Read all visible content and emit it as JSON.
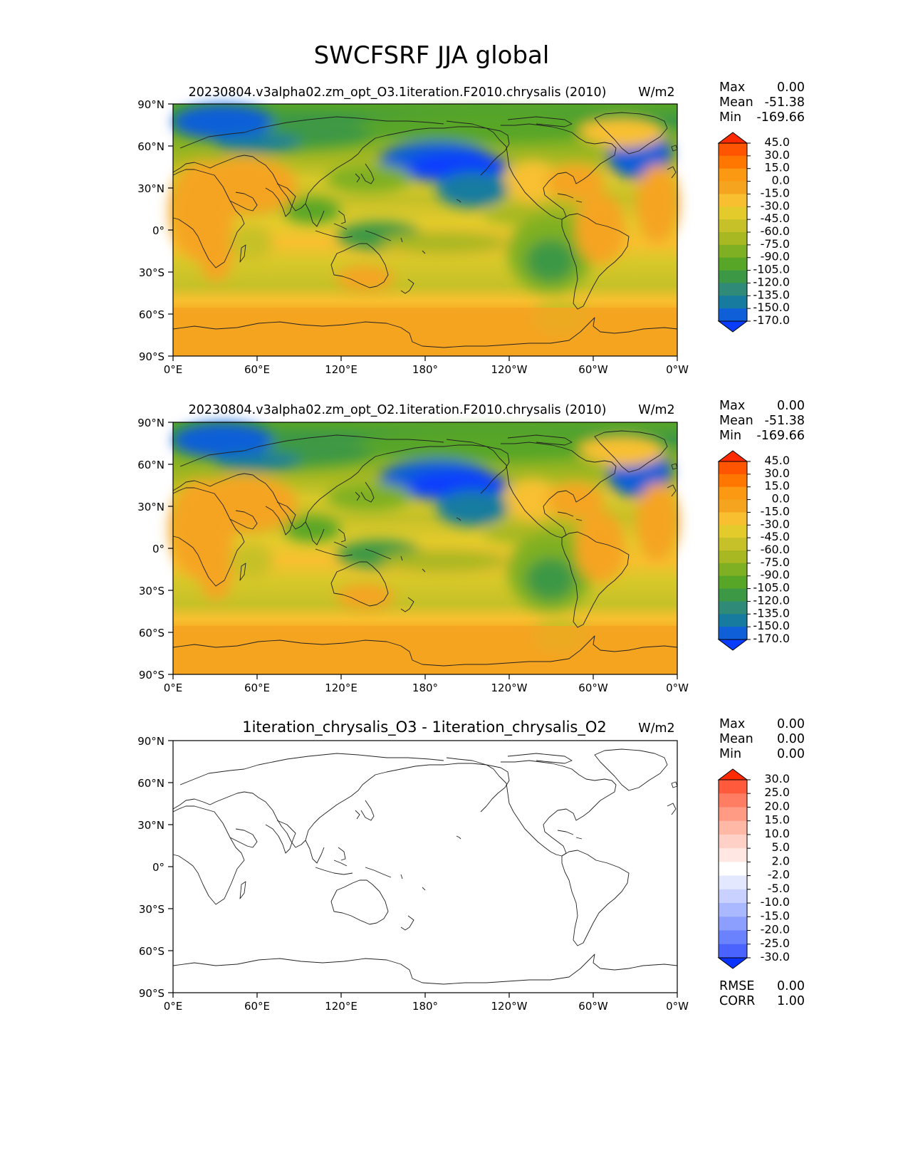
{
  "title": "SWCFSRF JJA global",
  "units": "W/m2",
  "lat_ticks": [
    "90°N",
    "60°N",
    "30°N",
    "0°",
    "30°S",
    "60°S",
    "90°S"
  ],
  "lon_ticks": [
    "0°E",
    "60°E",
    "120°E",
    "180°",
    "120°W",
    "60°W",
    "0°W"
  ],
  "stat_labels": {
    "max": "Max",
    "mean": "Mean",
    "min": "Min",
    "rmse": "RMSE",
    "corr": "CORR"
  },
  "panels": [
    {
      "title": "20230804.v3alpha02.zm_opt_O3.1iteration.F2010.chrysalis (2010)",
      "units": "W/m2",
      "stats": {
        "max": "0.00",
        "mean": "-51.38",
        "min": "-169.66"
      },
      "colorbar": {
        "levels": [
          "45.0",
          "30.0",
          "15.0",
          "0.0",
          "-15.0",
          "-30.0",
          "-45.0",
          "-60.0",
          "-75.0",
          "-90.0",
          "-105.0",
          "-120.0",
          "-135.0",
          "-150.0",
          "-170.0"
        ],
        "colors": [
          "#ff2a00",
          "#ff5500",
          "#ff7700",
          "#fb9a12",
          "#f5a420",
          "#f8c030",
          "#e4cb2c",
          "#c6c128",
          "#a8b822",
          "#7fb023",
          "#58a627",
          "#3d9845",
          "#2f8a78",
          "#177ba0",
          "#0f5fd8",
          "#0a3cff"
        ]
      }
    },
    {
      "title": "20230804.v3alpha02.zm_opt_O2.1iteration.F2010.chrysalis (2010)",
      "units": "W/m2",
      "stats": {
        "max": "0.00",
        "mean": "-51.38",
        "min": "-169.66"
      },
      "colorbar": {
        "levels": [
          "45.0",
          "30.0",
          "15.0",
          "0.0",
          "-15.0",
          "-30.0",
          "-45.0",
          "-60.0",
          "-75.0",
          "-90.0",
          "-105.0",
          "-120.0",
          "-135.0",
          "-150.0",
          "-170.0"
        ],
        "colors": [
          "#ff2a00",
          "#ff5500",
          "#ff7700",
          "#fb9a12",
          "#f5a420",
          "#f8c030",
          "#e4cb2c",
          "#c6c128",
          "#a8b822",
          "#7fb023",
          "#58a627",
          "#3d9845",
          "#2f8a78",
          "#177ba0",
          "#0f5fd8",
          "#0a3cff"
        ]
      }
    },
    {
      "title": "1iteration_chrysalis_O3 - 1iteration_chrysalis_O2",
      "units": "W/m2",
      "stats": {
        "max": "0.00",
        "mean": "0.00",
        "min": "0.00",
        "rmse": "0.00",
        "corr": "1.00"
      },
      "colorbar": {
        "levels": [
          "30.0",
          "25.0",
          "20.0",
          "15.0",
          "10.0",
          "5.0",
          "2.0",
          "-2.0",
          "-5.0",
          "-10.0",
          "-15.0",
          "-20.0",
          "-25.0",
          "-30.0"
        ],
        "colors": [
          "#ff2a00",
          "#ff5a3c",
          "#ff7d62",
          "#ff9a85",
          "#ffb8a6",
          "#ffd1c6",
          "#ffe8e3",
          "#ffffff",
          "#e3e8ff",
          "#c8d1ff",
          "#a9b8ff",
          "#8c9fff",
          "#6b82ff",
          "#4a63ff",
          "#0a32ff"
        ]
      }
    }
  ],
  "chart_data": {
    "type": "heatmap",
    "title": "SWCFSRF JJA global",
    "variable": "SWCFSRF",
    "season": "JJA",
    "units": "W/m2",
    "x_range_deg": [
      0,
      360
    ],
    "y_range_deg": [
      -90,
      90
    ],
    "panels": [
      {
        "name": "20230804.v3alpha02.zm_opt_O3.1iteration.F2010.chrysalis (2010)",
        "max": 0.0,
        "mean": -51.38,
        "min": -169.66,
        "contour_levels": [
          -170,
          -150,
          -135,
          -120,
          -105,
          -90,
          -75,
          -60,
          -45,
          -30,
          -15,
          0,
          15,
          30,
          45
        ]
      },
      {
        "name": "20230804.v3alpha02.zm_opt_O2.1iteration.F2010.chrysalis (2010)",
        "max": 0.0,
        "mean": -51.38,
        "min": -169.66,
        "contour_levels": [
          -170,
          -150,
          -135,
          -120,
          -105,
          -90,
          -75,
          -60,
          -45,
          -30,
          -15,
          0,
          15,
          30,
          45
        ]
      },
      {
        "name": "1iteration_chrysalis_O3 - 1iteration_chrysalis_O2",
        "max": 0.0,
        "mean": 0.0,
        "min": 0.0,
        "rmse": 0.0,
        "corr": 1.0,
        "contour_levels": [
          -30,
          -25,
          -20,
          -15,
          -10,
          -5,
          -2,
          2,
          5,
          10,
          15,
          20,
          25,
          30
        ]
      }
    ]
  }
}
